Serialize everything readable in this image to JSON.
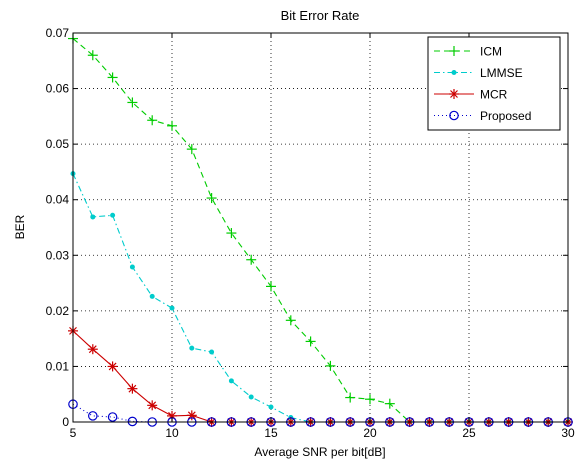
{
  "chart_data": {
    "type": "line",
    "title": "Bit Error Rate",
    "xlabel": "Average SNR per bit[dB]",
    "ylabel": "BER",
    "xlim": [
      5,
      30
    ],
    "ylim": [
      0,
      0.07
    ],
    "xticks": [
      5,
      10,
      15,
      20,
      25,
      30
    ],
    "xtick_labels": [
      "5",
      "10",
      "15",
      "20",
      "25",
      "30"
    ],
    "yticks": [
      0,
      0.01,
      0.02,
      0.03,
      0.04,
      0.05,
      0.06,
      0.07
    ],
    "ytick_labels": [
      "0",
      "0.01",
      "0.02",
      "0.03",
      "0.04",
      "0.05",
      "0.06",
      "0.07"
    ],
    "grid": true,
    "legend_position": "top-right",
    "x": [
      5,
      6,
      7,
      8,
      9,
      10,
      11,
      12,
      13,
      14,
      15,
      16,
      17,
      18,
      19,
      20,
      21,
      22,
      23,
      24,
      25,
      26,
      27,
      28,
      29,
      30
    ],
    "series": [
      {
        "name": "ICM",
        "color": "#00cc00",
        "line": "dashed",
        "marker": "plus",
        "values": [
          0.069,
          0.066,
          0.062,
          0.0575,
          0.0543,
          0.0533,
          0.0491,
          0.0403,
          0.034,
          0.0292,
          0.0244,
          0.0183,
          0.0145,
          0.0101,
          0.0044,
          0.0041,
          0.0033,
          0.0,
          0,
          0,
          0,
          0,
          0,
          0,
          0,
          0
        ]
      },
      {
        "name": "LMMSE",
        "color": "#00cccc",
        "line": "dashdot",
        "marker": "dot",
        "values": [
          0.0447,
          0.0369,
          0.0372,
          0.0279,
          0.0226,
          0.0205,
          0.0133,
          0.0126,
          0.0074,
          0.0045,
          0.0027,
          0.0008,
          0,
          0,
          0,
          0,
          0,
          0,
          0,
          0,
          0,
          0,
          0,
          0,
          0,
          0
        ]
      },
      {
        "name": "MCR",
        "color": "#cc0000",
        "line": "solid",
        "marker": "star",
        "values": [
          0.0164,
          0.0131,
          0.01,
          0.006,
          0.003,
          0.0011,
          0.0012,
          0,
          0,
          0,
          0,
          0,
          0,
          0,
          0,
          0,
          0,
          0,
          0,
          0,
          0,
          0,
          0,
          0,
          0,
          0
        ]
      },
      {
        "name": "Proposed",
        "color": "#0000cc",
        "line": "dotted",
        "marker": "circle",
        "values": [
          0.0032,
          0.0011,
          0.0009,
          0.0001,
          0,
          0,
          0,
          0,
          0,
          0,
          0,
          0,
          0,
          0,
          0,
          0,
          0,
          0,
          0,
          0,
          0,
          0,
          0,
          0,
          0,
          0
        ]
      }
    ]
  }
}
